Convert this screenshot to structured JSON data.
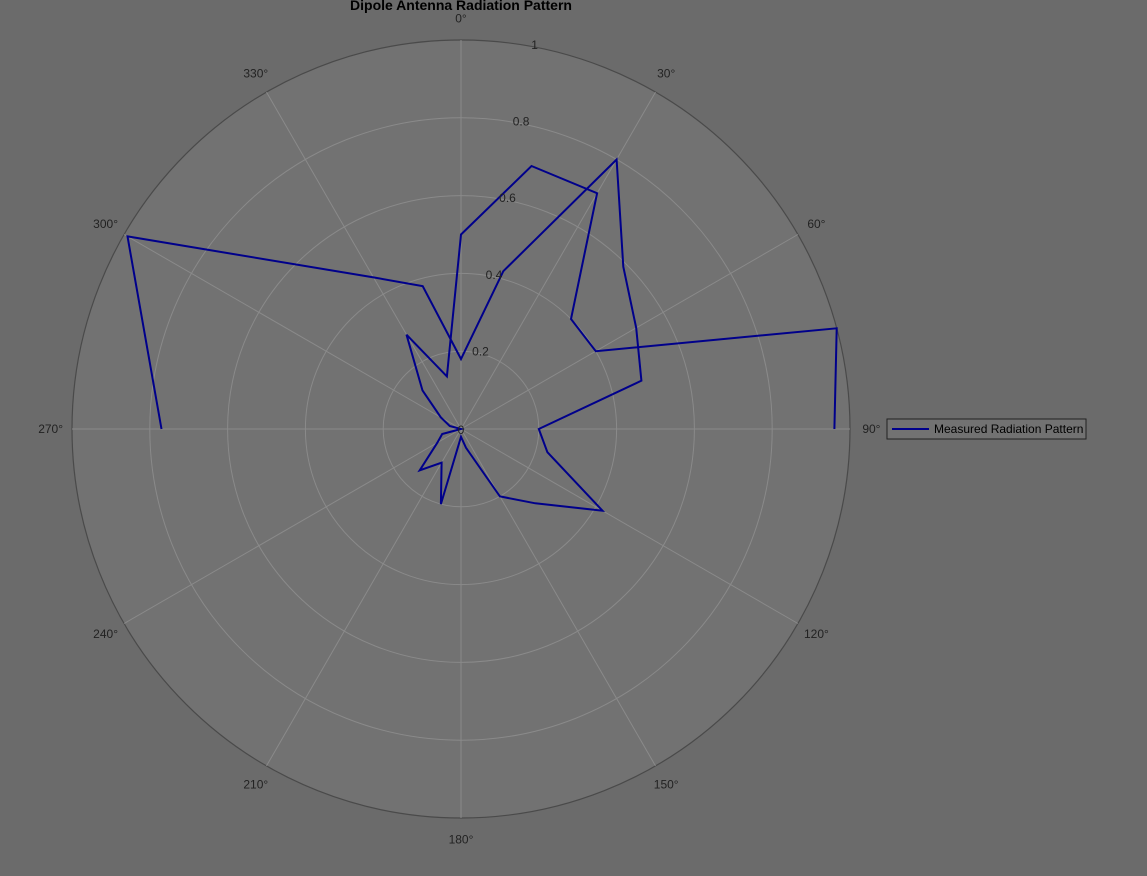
{
  "colors": {
    "background": "#6b6b6b",
    "axes_face": "#727272",
    "grid": "#8a8a8a",
    "outer_circle": "#4a4a4a",
    "series": "#00008b"
  },
  "chart_data": {
    "type": "line",
    "subtype": "polar",
    "title": "Dipole Antenna Radiation Pattern",
    "theta_zero_location": "top",
    "theta_direction": "clockwise",
    "theta_ticks_deg": [
      0,
      30,
      60,
      90,
      120,
      150,
      180,
      210,
      240,
      270,
      300,
      330
    ],
    "theta_tick_labels": [
      "0°",
      "30°",
      "60°",
      "90°",
      "120°",
      "150°",
      "180°",
      "210°",
      "240°",
      "270°",
      "300°",
      "330°"
    ],
    "r_ticks": [
      0,
      0.2,
      0.4,
      0.6,
      0.8,
      1
    ],
    "r_tick_labels": [
      "0",
      "0.2",
      "0.4",
      "0.6",
      "0.8",
      "1"
    ],
    "rlim": [
      0,
      1
    ],
    "grid": true,
    "legend_position": "right",
    "series": [
      {
        "name": "Measured Radiation Pattern",
        "theta_deg": [
          270,
          300,
          330,
          345,
          360,
          15,
          30,
          45,
          60,
          75,
          90,
          105,
          120,
          135,
          150,
          165,
          180,
          195,
          210,
          225,
          240,
          255,
          270,
          285,
          300,
          315,
          330,
          345,
          360,
          15,
          30,
          45,
          60,
          75,
          90
        ],
        "r": [
          0.77,
          0.99,
          0.45,
          0.38,
          0.18,
          0.42,
          0.8,
          0.59,
          0.52,
          0.48,
          0.2,
          0.23,
          0.42,
          0.27,
          0.2,
          0.05,
          0.02,
          0.2,
          0.1,
          0.15,
          0.07,
          0.05,
          0.0,
          0.03,
          0.06,
          0.14,
          0.28,
          0.14,
          0.5,
          0.7,
          0.7,
          0.4,
          0.4,
          1.0,
          0.96
        ]
      }
    ]
  }
}
